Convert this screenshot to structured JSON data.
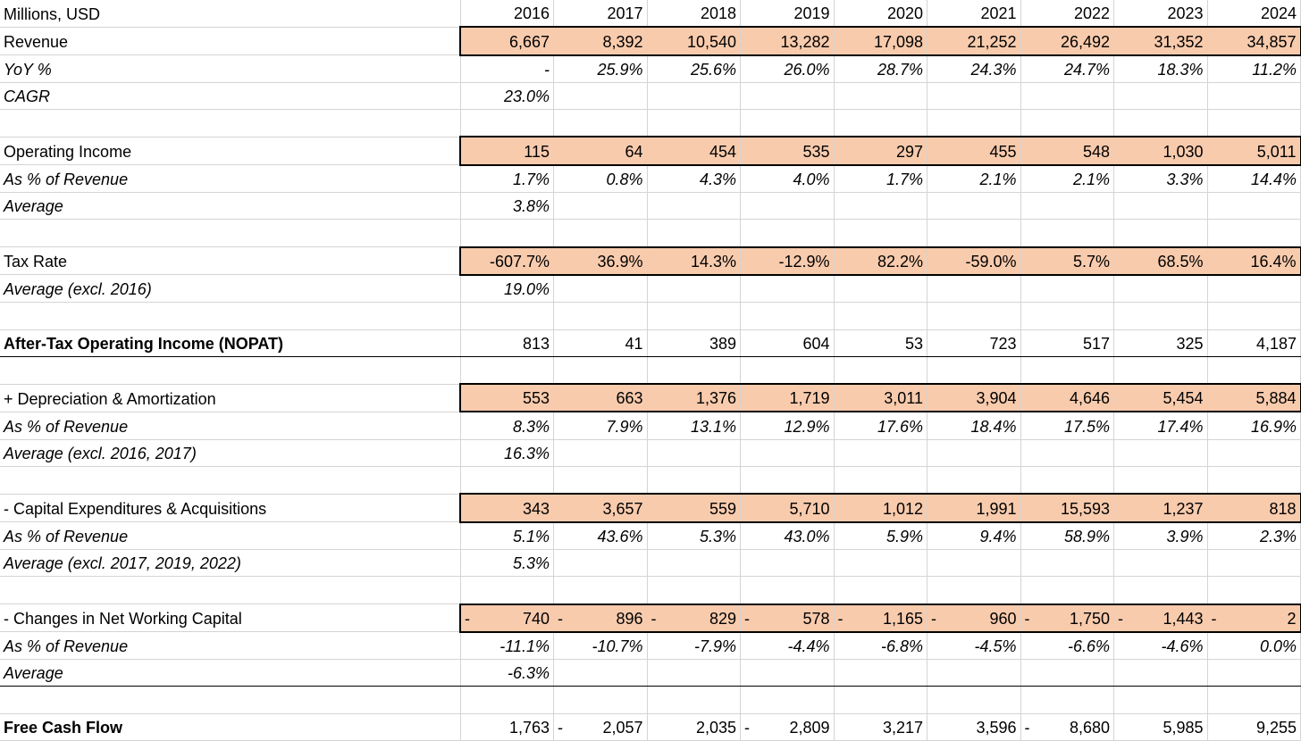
{
  "header": {
    "unit_label": "Millions, USD",
    "years": [
      "2016",
      "2017",
      "2018",
      "2019",
      "2020",
      "2021",
      "2022",
      "2023",
      "2024"
    ]
  },
  "rows": [
    {
      "label": "Revenue",
      "style": "hl",
      "cells": [
        "6,667",
        "8,392",
        "10,540",
        "13,282",
        "17,098",
        "21,252",
        "26,492",
        "31,352",
        "34,857"
      ]
    },
    {
      "label": "YoY %",
      "style": "italic",
      "cells": [
        "-",
        "25.9%",
        "25.6%",
        "26.0%",
        "28.7%",
        "24.3%",
        "24.7%",
        "18.3%",
        "11.2%"
      ]
    },
    {
      "label": "CAGR",
      "style": "italic",
      "cells": [
        "23.0%",
        "",
        "",
        "",
        "",
        "",
        "",
        "",
        ""
      ]
    },
    {
      "label": "",
      "style": "blank",
      "cells": [
        "",
        "",
        "",
        "",
        "",
        "",
        "",
        "",
        ""
      ]
    },
    {
      "label": "Operating Income",
      "style": "hl",
      "cells": [
        "115",
        "64",
        "454",
        "535",
        "297",
        "455",
        "548",
        "1,030",
        "5,011"
      ]
    },
    {
      "label": "As % of Revenue",
      "style": "italic",
      "cells": [
        "1.7%",
        "0.8%",
        "4.3%",
        "4.0%",
        "1.7%",
        "2.1%",
        "2.1%",
        "3.3%",
        "14.4%"
      ]
    },
    {
      "label": "Average",
      "style": "italic",
      "cells": [
        "3.8%",
        "",
        "",
        "",
        "",
        "",
        "",
        "",
        ""
      ]
    },
    {
      "label": "",
      "style": "blank",
      "cells": [
        "",
        "",
        "",
        "",
        "",
        "",
        "",
        "",
        ""
      ]
    },
    {
      "label": "Tax Rate",
      "style": "hl",
      "cells": [
        "-607.7%",
        "36.9%",
        "14.3%",
        "-12.9%",
        "82.2%",
        "-59.0%",
        "5.7%",
        "68.5%",
        "16.4%"
      ]
    },
    {
      "label": "Average (excl. 2016)",
      "style": "italic",
      "cells": [
        "19.0%",
        "",
        "",
        "",
        "",
        "",
        "",
        "",
        ""
      ]
    },
    {
      "label": "",
      "style": "blank",
      "cells": [
        "",
        "",
        "",
        "",
        "",
        "",
        "",
        "",
        ""
      ]
    },
    {
      "label": "After-Tax Operating Income (NOPAT)",
      "style": "bold bline",
      "cells": [
        "813",
        "41",
        "389",
        "604",
        "53",
        "723",
        "517",
        "325",
        "4,187"
      ]
    },
    {
      "label": "",
      "style": "blank",
      "cells": [
        "",
        "",
        "",
        "",
        "",
        "",
        "",
        "",
        ""
      ]
    },
    {
      "label": "+ Depreciation & Amortization",
      "style": "hl",
      "cells": [
        "553",
        "663",
        "1,376",
        "1,719",
        "3,011",
        "3,904",
        "4,646",
        "5,454",
        "5,884"
      ]
    },
    {
      "label": "As % of Revenue",
      "style": "italic",
      "cells": [
        "8.3%",
        "7.9%",
        "13.1%",
        "12.9%",
        "17.6%",
        "18.4%",
        "17.5%",
        "17.4%",
        "16.9%"
      ]
    },
    {
      "label": "Average (excl. 2016, 2017)",
      "style": "italic",
      "cells": [
        "16.3%",
        "",
        "",
        "",
        "",
        "",
        "",
        "",
        ""
      ]
    },
    {
      "label": "",
      "style": "blank",
      "cells": [
        "",
        "",
        "",
        "",
        "",
        "",
        "",
        "",
        ""
      ]
    },
    {
      "label": "- Capital Expenditures & Acquisitions",
      "style": "hl",
      "cells": [
        "343",
        "3,657",
        "559",
        "5,710",
        "1,012",
        "1,991",
        "15,593",
        "1,237",
        "818"
      ]
    },
    {
      "label": "As % of Revenue",
      "style": "italic",
      "cells": [
        "5.1%",
        "43.6%",
        "5.3%",
        "43.0%",
        "5.9%",
        "9.4%",
        "58.9%",
        "3.9%",
        "2.3%"
      ]
    },
    {
      "label": "Average (excl. 2017, 2019, 2022)",
      "style": "italic",
      "cells": [
        "5.3%",
        "",
        "",
        "",
        "",
        "",
        "",
        "",
        ""
      ]
    },
    {
      "label": "",
      "style": "blank",
      "cells": [
        "",
        "",
        "",
        "",
        "",
        "",
        "",
        "",
        ""
      ]
    },
    {
      "label": "- Changes in Net Working Capital",
      "style": "hl",
      "neg_all": true,
      "cells": [
        "740",
        "896",
        "829",
        "578",
        "1,165",
        "960",
        "1,750",
        "1,443",
        "2"
      ]
    },
    {
      "label": "As % of Revenue",
      "style": "italic",
      "cells": [
        "-11.1%",
        "-10.7%",
        "-7.9%",
        "-4.4%",
        "-6.8%",
        "-4.5%",
        "-6.6%",
        "-4.6%",
        "0.0%"
      ]
    },
    {
      "label": "Average",
      "style": "italic bline",
      "cells": [
        "-6.3%",
        "",
        "",
        "",
        "",
        "",
        "",
        "",
        ""
      ]
    },
    {
      "label": "",
      "style": "blank",
      "cells": [
        "",
        "",
        "",
        "",
        "",
        "",
        "",
        "",
        ""
      ]
    },
    {
      "label": "Free Cash Flow",
      "style": "bold",
      "neg_cols": [
        1,
        3,
        6
      ],
      "cells": [
        "1,763",
        "2,057",
        "2,035",
        "2,809",
        "3,217",
        "3,596",
        "8,680",
        "5,985",
        "9,255"
      ]
    }
  ],
  "negative_marker": "-",
  "colors": {
    "highlight_fill": "#f8cbad",
    "grid": "#d4d4d4",
    "border": "#000000"
  }
}
